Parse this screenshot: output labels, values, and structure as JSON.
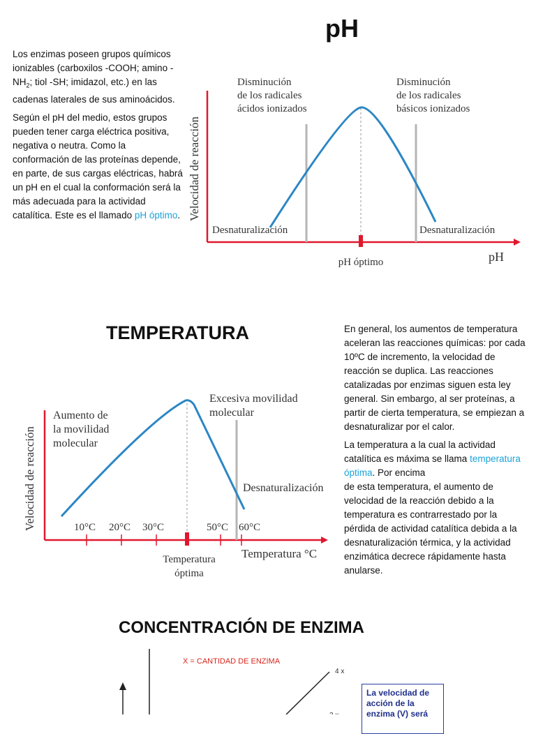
{
  "sections": {
    "ph": {
      "title": "pH",
      "paragraph1": "Los enzimas poseen grupos químicos ionizables (carboxilos -COOH; amino -NH",
      "paragraph1_sub": "2",
      "paragraph1_rest": "; tiol -SH; imidazol, etc.) en las cadenas laterales de sus aminoácidos.",
      "paragraph2": "Según el pH del medio, estos grupos pueden tener carga eléctrica positiva, negativa o neutra. Como la conformación de las proteínas depende, en parte, de sus cargas eléctricas, habrá un pH en el cual la conformación será la más adecuada para la actividad catalítica. Este es el llamado ",
      "paragraph2_highlight": "pH óptimo",
      "paragraph2_end": "."
    },
    "temperature": {
      "title": "TEMPERATURA",
      "paragraph1": "En general, los aumentos de temperatura aceleran las reacciones químicas: por cada 10ºC de incremento, la velocidad de reacción se duplica. Las reacciones catalizadas por enzimas siguen esta ley general. Sin embargo, al ser proteínas, a partir de cierta temperatura, se empiezan a desnaturalizar por el calor.",
      "paragraph2": "La temperatura a la cual la actividad catalítica es máxima se llama ",
      "paragraph2_highlight": "temperatura óptima",
      "paragraph2_rest": ". Por encima",
      "paragraph3": "de esta temperatura, el aumento de velocidad de la reacción debido a la temperatura es contrarrestado por la pérdida de actividad catalítica debida a la desnaturalización térmica, y la actividad enzimática decrece rápidamente hasta anularse."
    },
    "enzyme": {
      "title": "CONCENTRACIÓN DE ENZIMA",
      "legend": "X = CANTIDAD DE ENZIMA",
      "line_label_4x": "4 x",
      "line_label_3x": "3 x",
      "note": "La velocidad de acción de la enzima (V) será"
    }
  },
  "diagrams": {
    "ph_chart": {
      "ylabel": "Velocidad de reacción",
      "xlabel": "pH",
      "left_note_line1": "Disminución",
      "left_note_line2": "de los radicales",
      "left_note_line3": "ácidos ionizados",
      "right_note_line1": "Disminución",
      "right_note_line2": "de los radicales",
      "right_note_line3": "básicos ionizados",
      "left_zone": "Desnaturalización",
      "right_zone": "Desnaturalización",
      "optimum_label": "pH óptimo"
    },
    "temp_chart": {
      "ylabel": "Velocidad de reacción",
      "xlabel": "Temperatura °C",
      "left_note_line1": "Aumento de",
      "left_note_line2": "la movilidad",
      "left_note_line3": "molecular",
      "right_note_line1": "Excesiva movilidad",
      "right_note_line2": "molecular",
      "zone": "Desnaturalización",
      "ticks": [
        "10°C",
        "20°C",
        "30°C",
        "50°C",
        "60°C"
      ],
      "optimum_line1": "Temperatura",
      "optimum_line2": "óptima"
    }
  },
  "colors": {
    "curve": "#2b86c5",
    "axis": "#e0182d",
    "highlight": "#1aa3d9",
    "guide": "#b5b5b5",
    "legend_red": "#d9261c",
    "note_border": "#2a3f9e"
  }
}
